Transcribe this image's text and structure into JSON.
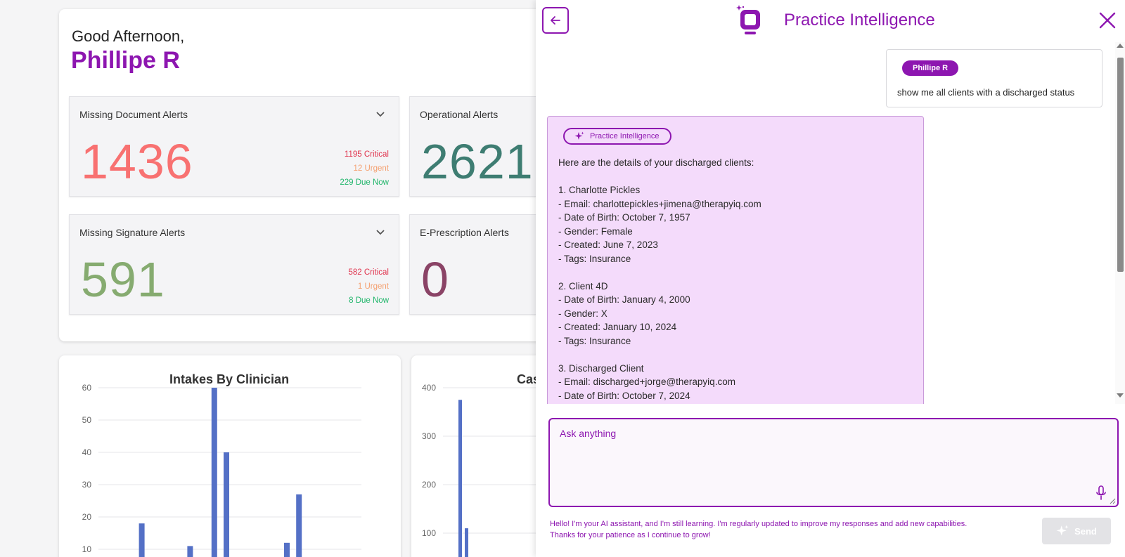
{
  "dashboard": {
    "greeting": "Good Afternoon,",
    "user_name": "Phillipe R",
    "alerts": [
      {
        "title": "Missing Document Alerts",
        "value": "1436",
        "color": "#f87171",
        "critical": "1195 Critical",
        "urgent": "12 Urgent",
        "due": "229 Due Now"
      },
      {
        "title": "Operational Alerts",
        "value": "2621",
        "color": "#3e7d72"
      },
      {
        "title": "Missing Signature Alerts",
        "value": "591",
        "color": "#86ab70",
        "critical": "582 Critical",
        "urgent": "1 Urgent",
        "due": "8 Due Now"
      },
      {
        "title": "E-Prescription Alerts",
        "value": "0",
        "color": "#8a4366"
      }
    ]
  },
  "chart_data": [
    {
      "type": "bar",
      "title": "Intakes By Clinician",
      "ylim": [
        0,
        60
      ],
      "yticks": [
        "60",
        "50",
        "40",
        "30",
        "20",
        "10"
      ],
      "values": [
        0,
        0,
        0,
        18,
        0,
        0,
        0,
        11,
        0,
        60,
        40,
        0,
        0,
        0,
        0,
        12,
        27,
        0,
        0,
        0
      ]
    },
    {
      "type": "bar",
      "title": "Cas",
      "ylim": [
        0,
        400
      ],
      "yticks": [
        "400",
        "300",
        "200",
        "100"
      ],
      "values": [
        0,
        375,
        110
      ]
    }
  ],
  "panel": {
    "title": "Practice Intelligence",
    "user_message": {
      "sender": "Phillipe R",
      "text": "show me all clients with a discharged status"
    },
    "bot_message": {
      "sender": "Practice Intelligence",
      "lines": [
        "Here are the details of your discharged clients:",
        "",
        "1. Charlotte Pickles",
        "- Email: charlottepickles+jimena@therapyiq.com",
        "- Date of Birth: October 7, 1957",
        "- Gender: Female",
        "- Created: June 7, 2023",
        "- Tags: Insurance",
        "",
        "2. Client 4D",
        "- Date of Birth: January 4, 2000",
        "- Gender: X",
        "- Created: January 10, 2024",
        "- Tags: Insurance",
        "",
        "3. Discharged Client",
        "- Email: discharged+jorge@therapyiq.com",
        "- Date of Birth: October 7, 2024"
      ]
    },
    "input_placeholder": "Ask anything",
    "disclaimer": "Hello! I'm your AI assistant, and I'm still learning. I'm regularly updated to improve my responses and add new capabilities. Thanks for your patience as I continue to grow!",
    "send_label": "Send"
  },
  "colors": {
    "accent": "#8d16b0",
    "bar": "#5470c6"
  }
}
